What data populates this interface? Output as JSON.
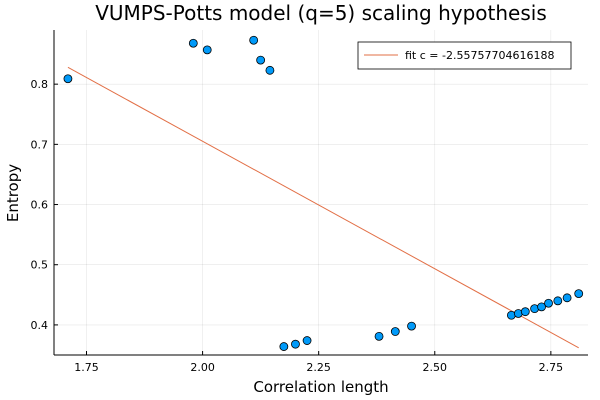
{
  "chart_data": {
    "type": "scatter",
    "title": "VUMPS-Potts model (q=5) scaling hypothesis",
    "xlabel": "Correlation length",
    "ylabel": "Entropy",
    "xlim": [
      1.68,
      2.83
    ],
    "ylim": [
      0.35,
      0.89
    ],
    "xticks": [
      1.75,
      2.0,
      2.25,
      2.5,
      2.75
    ],
    "xtick_labels": [
      "1.75",
      "2.00",
      "2.25",
      "2.50",
      "2.75"
    ],
    "yticks": [
      0.4,
      0.5,
      0.6,
      0.7,
      0.8
    ],
    "ytick_labels": [
      "0.4",
      "0.5",
      "0.6",
      "0.7",
      "0.8"
    ],
    "grid": true,
    "legend_position": "top-right",
    "series": [
      {
        "name": "",
        "kind": "scatter",
        "color": "#009af9",
        "points": [
          [
            1.71,
            0.809
          ],
          [
            1.98,
            0.868
          ],
          [
            2.01,
            0.857
          ],
          [
            2.11,
            0.873
          ],
          [
            2.125,
            0.84
          ],
          [
            2.145,
            0.823
          ],
          [
            2.175,
            0.364
          ],
          [
            2.2,
            0.368
          ],
          [
            2.225,
            0.374
          ],
          [
            2.38,
            0.381
          ],
          [
            2.415,
            0.389
          ],
          [
            2.45,
            0.398
          ],
          [
            2.665,
            0.416
          ],
          [
            2.68,
            0.419
          ],
          [
            2.695,
            0.422
          ],
          [
            2.715,
            0.427
          ],
          [
            2.73,
            0.43
          ],
          [
            2.745,
            0.436
          ],
          [
            2.765,
            0.44
          ],
          [
            2.785,
            0.445
          ],
          [
            2.81,
            0.452
          ]
        ]
      },
      {
        "name": "fit c = -2.55757704616188",
        "kind": "line",
        "color": "#e26f46",
        "points": [
          [
            1.71,
            0.828
          ],
          [
            2.81,
            0.362
          ]
        ]
      }
    ]
  }
}
